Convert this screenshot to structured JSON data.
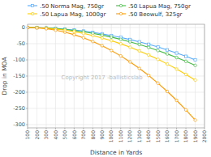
{
  "chart_data": {
    "type": "line",
    "xlabel": "Distance in Yards",
    "ylabel": "Drop in MOA",
    "x": [
      100,
      200,
      300,
      400,
      500,
      600,
      700,
      800,
      900,
      1000,
      1100,
      1200,
      1300,
      1400,
      1500,
      1600,
      1700,
      1800,
      1900
    ],
    "series": [
      {
        "name": ".50 Norma Mag, 750gr",
        "color": "#55aaff",
        "marker": "square",
        "values": [
          0.0,
          -0.4,
          -1.3,
          -2.8,
          -4.9,
          -7.6,
          -11.0,
          -15.0,
          -19.6,
          -24.8,
          -30.6,
          -37.1,
          -44.2,
          -51.9,
          -60.2,
          -69.2,
          -78.8,
          -89.0,
          -99.8
        ]
      },
      {
        "name": ".50 Lapua Mag, 750gr",
        "color": "#44bb44",
        "marker": "circle",
        "values": [
          0.0,
          -0.5,
          -1.6,
          -3.4,
          -6.0,
          -9.3,
          -13.3,
          -18.0,
          -23.5,
          -29.7,
          -36.6,
          -44.2,
          -52.5,
          -61.5,
          -71.2,
          -81.6,
          -92.7,
          -104.5,
          -117.0
        ]
      },
      {
        "name": ".50 Lapua Mag, 1000gr",
        "color": "#ffcc00",
        "marker": "circle",
        "values": [
          0.0,
          -0.7,
          -2.2,
          -4.7,
          -8.2,
          -12.8,
          -18.3,
          -24.8,
          -32.3,
          -40.8,
          -50.3,
          -60.8,
          -72.3,
          -84.8,
          -98.3,
          -112.8,
          -128.3,
          -144.8,
          -162.3
        ]
      },
      {
        "name": ".50 Beowulf, 325gr",
        "color": "#ff9900",
        "marker": "circle",
        "values": [
          0.0,
          -1.2,
          -3.8,
          -8.2,
          -14.3,
          -22.2,
          -31.8,
          -43.2,
          -56.3,
          -71.2,
          -87.8,
          -106.2,
          -126.3,
          -148.2,
          -172.0,
          -197.5,
          -225.0,
          -254.5,
          -286.0
        ]
      }
    ],
    "xlim": [
      100,
      2000
    ],
    "xticks": [
      100,
      200,
      300,
      400,
      500,
      600,
      700,
      800,
      900,
      1000,
      1100,
      1200,
      1300,
      1400,
      1500,
      1600,
      1700,
      1800,
      1900,
      2000
    ],
    "ylim": [
      -310,
      10
    ],
    "yticks": [
      -300,
      -250,
      -200,
      -150,
      -100,
      -50,
      0
    ],
    "grid": true,
    "legend": "top",
    "annotations": [
      "Copyright 2017 -ballisticslab"
    ]
  }
}
